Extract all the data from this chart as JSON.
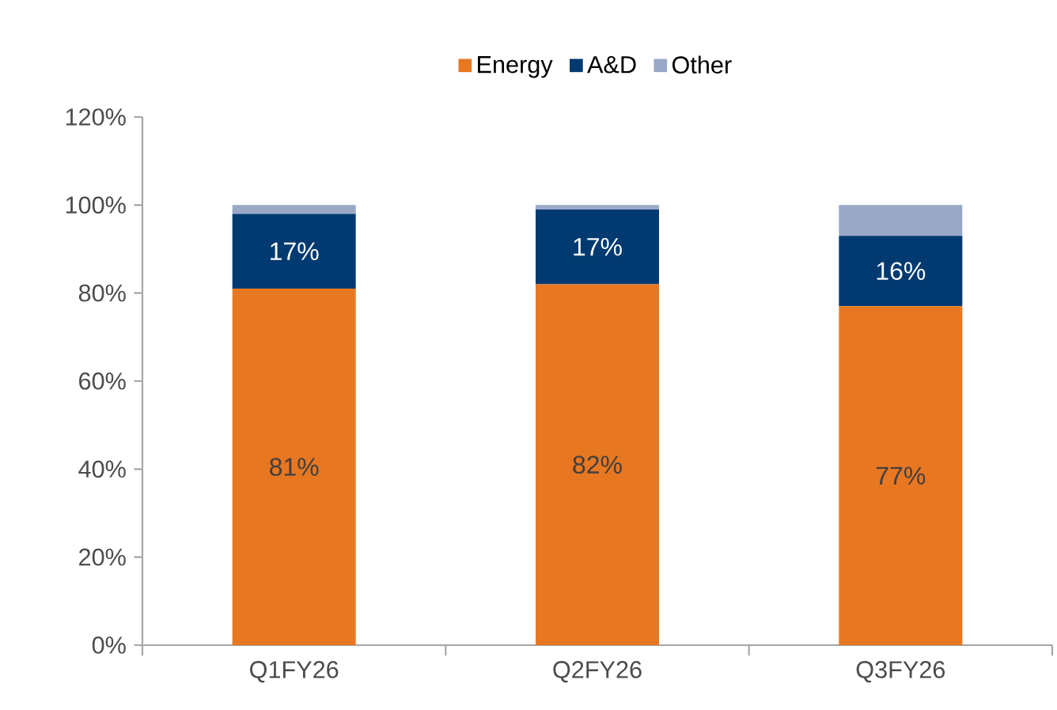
{
  "chart_data": {
    "type": "bar",
    "stacked": true,
    "categories": [
      "Q1FY26",
      "Q2FY26",
      "Q3FY26"
    ],
    "series": [
      {
        "name": "Energy",
        "color": "#e87722",
        "values": [
          81,
          82,
          77
        ],
        "value_labels": [
          "81%",
          "82%",
          "77%"
        ]
      },
      {
        "name": "A&D",
        "color": "#003a70",
        "values": [
          17,
          17,
          16
        ],
        "value_labels": [
          "17%",
          "17%",
          "16%"
        ]
      },
      {
        "name": "Other",
        "color": "#9aa7c7",
        "values": [
          2,
          1,
          7
        ]
      }
    ],
    "ylim": [
      0,
      120
    ],
    "yticks": [
      {
        "value": 0,
        "label": "0%"
      },
      {
        "value": 20,
        "label": "20%"
      },
      {
        "value": 40,
        "label": "40%"
      },
      {
        "value": 60,
        "label": "60%"
      },
      {
        "value": 80,
        "label": "80%"
      },
      {
        "value": 100,
        "label": "100%"
      },
      {
        "value": 120,
        "label": "120%"
      }
    ],
    "grid": false,
    "legend": "top"
  }
}
